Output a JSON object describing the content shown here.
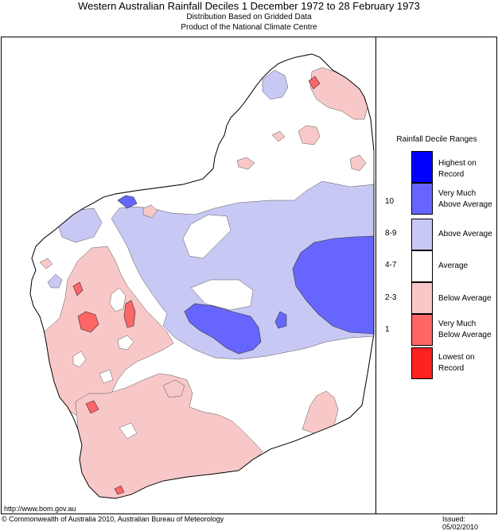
{
  "header": {
    "title": "Western Australian Rainfall Deciles     1 December 1972 to 28 February 1973",
    "subtitle1": "Distribution Based on Gridded Data",
    "subtitle2": "Product of the National Climate Centre"
  },
  "legend": {
    "title": "Rainfall Decile Ranges",
    "items": [
      {
        "code": "",
        "label1": "Highest on",
        "label2": "Record",
        "color": "#0000ff"
      },
      {
        "code": "10",
        "label1": "Very Much",
        "label2": "Above Average",
        "color": "#6666ff"
      },
      {
        "code": "8-9",
        "label1": "Above Average",
        "label2": "",
        "color": "#c8c8f4"
      },
      {
        "code": "4-7",
        "label1": "Average",
        "label2": "",
        "color": "#ffffff"
      },
      {
        "code": "2-3",
        "label1": "Below Average",
        "label2": "",
        "color": "#f8c8c8"
      },
      {
        "code": "1",
        "label1": "Very Much",
        "label2": "Below Average",
        "color": "#ff6666"
      },
      {
        "code": "",
        "label1": "Lowest on",
        "label2": "Record",
        "color": "#ff2020"
      }
    ]
  },
  "footer": {
    "url": "http://www.bom.gov.au",
    "copyright": "© Commonwealth of Australia 2010, Australian Bureau of Meteorology",
    "issued": "Issued: 05/02/2010"
  },
  "colors": {
    "highest": "#0000ff",
    "very_much_above": "#6666ff",
    "above": "#c8c8f4",
    "average": "#ffffff",
    "below": "#f8c8c8",
    "very_much_below": "#ff6666",
    "lowest": "#ff2020"
  }
}
